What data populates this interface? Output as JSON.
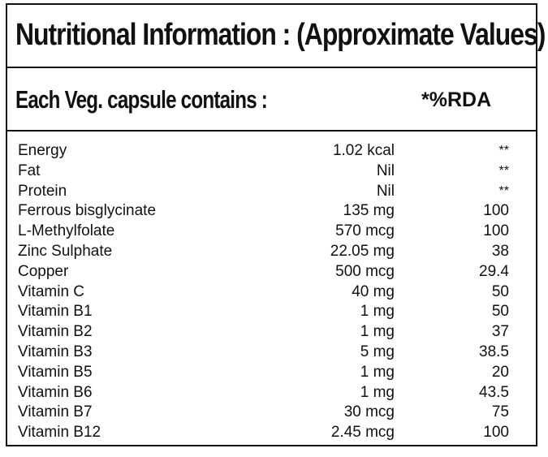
{
  "title": "Nutritional Information : (Approximate Values)",
  "subheading": {
    "label": "Each Veg. capsule contains :",
    "rda_header": "*%RDA"
  },
  "rows": [
    {
      "nutrient": "Energy",
      "amount": "1.02 kcal",
      "rda": "**"
    },
    {
      "nutrient": "Fat",
      "amount": "Nil",
      "rda": "**"
    },
    {
      "nutrient": "Protein",
      "amount": "Nil",
      "rda": "**"
    },
    {
      "nutrient": "Ferrous bisglycinate",
      "amount": "135 mg",
      "rda": "100"
    },
    {
      "nutrient": "L-Methylfolate",
      "amount": "570 mcg",
      "rda": "100"
    },
    {
      "nutrient": "Zinc Sulphate",
      "amount": "22.05 mg",
      "rda": "38"
    },
    {
      "nutrient": "Copper",
      "amount": "500 mcg",
      "rda": "29.4"
    },
    {
      "nutrient": "Vitamin C",
      "amount": "40 mg",
      "rda": "50"
    },
    {
      "nutrient": "Vitamin B1",
      "amount": "1 mg",
      "rda": "50"
    },
    {
      "nutrient": "Vitamin B2",
      "amount": "1 mg",
      "rda": "37"
    },
    {
      "nutrient": "Vitamin B3",
      "amount": "5 mg",
      "rda": "38.5"
    },
    {
      "nutrient": "Vitamin B5",
      "amount": "1 mg",
      "rda": "20"
    },
    {
      "nutrient": "Vitamin B6",
      "amount": "1 mg",
      "rda": "43.5"
    },
    {
      "nutrient": "Vitamin B7",
      "amount": "30 mcg",
      "rda": "75"
    },
    {
      "nutrient": "Vitamin B12",
      "amount": "2.45 mcg",
      "rda": "100"
    }
  ]
}
